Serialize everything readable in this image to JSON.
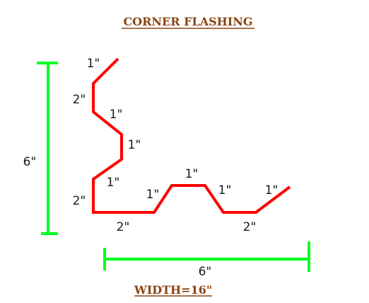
{
  "diagram": {
    "title": "CORNER FLASHING",
    "width_label": "WIDTH=16\"",
    "colors": {
      "flashing": "#ff0000",
      "dimension_lines": "#00ff22",
      "title_text": "#8B4513",
      "segment_text": "#1a1a1a"
    },
    "vertical_dimension": "6\"",
    "horizontal_dimension": "6\"",
    "segment_labels": [
      "1\"",
      "2\"",
      "1\"",
      "1\"",
      "1\"",
      "2\"",
      "2\"",
      "1\"",
      "1\"",
      "1\"",
      "2\"",
      "1\""
    ]
  }
}
